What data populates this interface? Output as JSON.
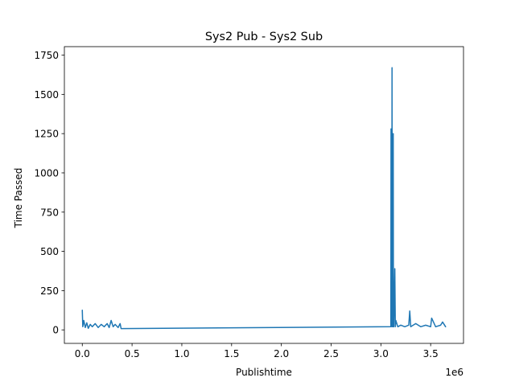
{
  "chart_data": {
    "type": "line",
    "title": "Sys2 Pub - Sys2 Sub",
    "xlabel": "Publishtime",
    "ylabel": "Time Passed",
    "x_offset_label": "1e6",
    "x_scale": 1000000,
    "xlim": [
      -180000,
      3830000
    ],
    "ylim": [
      -86,
      1804
    ],
    "x_ticks": [
      0,
      500000,
      1000000,
      1500000,
      2000000,
      2500000,
      3000000,
      3500000
    ],
    "x_tick_labels": [
      "0.0",
      "0.5",
      "1.0",
      "1.5",
      "2.0",
      "2.5",
      "3.0",
      "3.5"
    ],
    "y_ticks": [
      0,
      250,
      500,
      750,
      1000,
      1250,
      1500,
      1750
    ],
    "y_tick_labels": [
      "0",
      "250",
      "500",
      "750",
      "1000",
      "1250",
      "1500",
      "1750"
    ],
    "grid": false,
    "legend": "none",
    "color": "#1f77b4",
    "series": [
      {
        "x": [
          0,
          5000,
          15000,
          30000,
          45000,
          60000,
          80000,
          100000,
          130000,
          160000,
          190000,
          220000,
          250000,
          270000,
          290000,
          310000,
          330000,
          360000,
          380000,
          390000,
          3100000,
          3102000,
          3104000,
          3106000,
          3108000,
          3110000,
          3112000,
          3114000,
          3116000,
          3118000,
          3120000,
          3122000,
          3124000,
          3126000,
          3130000,
          3140000,
          3145000,
          3150000,
          3170000,
          3200000,
          3240000,
          3280000,
          3290000,
          3300000,
          3350000,
          3400000,
          3450000,
          3500000,
          3510000,
          3550000,
          3600000,
          3620000,
          3650000
        ],
        "y": [
          125,
          20,
          60,
          15,
          45,
          10,
          35,
          20,
          40,
          15,
          35,
          20,
          40,
          15,
          60,
          20,
          35,
          15,
          40,
          8,
          20,
          1280,
          30,
          1000,
          60,
          20,
          1670,
          40,
          20,
          500,
          60,
          20,
          1250,
          25,
          20,
          390,
          20,
          60,
          20,
          30,
          20,
          30,
          120,
          20,
          40,
          20,
          30,
          20,
          75,
          20,
          30,
          50,
          20
        ]
      }
    ]
  }
}
